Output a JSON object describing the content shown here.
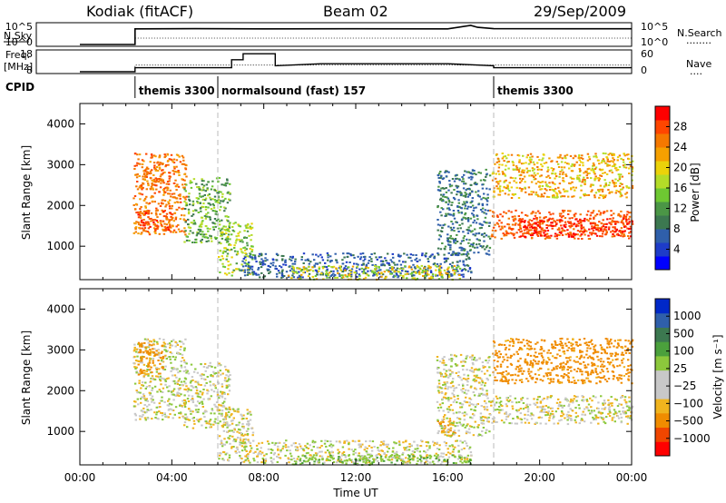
{
  "header": {
    "radar": "Kodiak (fitACF)",
    "beam": "Beam 02",
    "date": "29/Sep/2009"
  },
  "status_panels": {
    "nsky_label": "N.Sky",
    "nsearch_label": "N.Search",
    "nsearch_legend": "........",
    "freq_label_1": "Freq.",
    "freq_label_2": "[MHz]",
    "nave_label": "Nave",
    "nave_legend": "....",
    "cpid_label": "CPID",
    "nsky_ticks": [
      "10^5",
      "10^0"
    ],
    "nsearch_ticks": [
      "10^5",
      "10^0"
    ],
    "freq_ticks": [
      "18",
      "8"
    ],
    "nave_ticks": [
      "60",
      "0"
    ],
    "cpid_segments": [
      {
        "start_hour": 2.4,
        "label": "themis 3300"
      },
      {
        "start_hour": 6.0,
        "label": "normalsound (fast) 157"
      },
      {
        "start_hour": 18.0,
        "label": "themis 3300"
      }
    ]
  },
  "axes": {
    "x_label": "Time UT",
    "x_ticks": [
      "00:00",
      "04:00",
      "08:00",
      "12:00",
      "16:00",
      "20:00",
      "00:00"
    ],
    "y_label": "Slant Range [km]",
    "y_ticks": [
      "1000",
      "2000",
      "3000",
      "4000"
    ]
  },
  "colorbars": {
    "power": {
      "label": "Power [dB]",
      "ticks": [
        "4",
        "8",
        "12",
        "16",
        "20",
        "24",
        "28"
      ],
      "colors": [
        "#0000ff",
        "#1e3cc8",
        "#2f5faa",
        "#3c7850",
        "#4b9646",
        "#6ec832",
        "#b4dc28",
        "#ebd20a",
        "#f5a000",
        "#f57800",
        "#ff4600",
        "#ff0000"
      ]
    },
    "velocity": {
      "label": "Velocity [m s⁻¹]",
      "ticks": [
        "1000",
        "500",
        "100",
        "25",
        "−25",
        "−100",
        "−500",
        "−1000"
      ],
      "colors": [
        "#0028c8",
        "#2f5faa",
        "#3c7850",
        "#4ba03c",
        "#8cc83c",
        "#c8c8c8",
        "#c8c8c8",
        "#f0b41e",
        "#f08c00",
        "#f04600",
        "#ff0000"
      ]
    }
  },
  "chart_data": [
    {
      "type": "line",
      "title": "Kodiak (fitACF)",
      "panel": "status",
      "series": [
        {
          "name": "N.Sky",
          "x": [
            0,
            2.4,
            2.4,
            5,
            8,
            12,
            16,
            17,
            17.3,
            18,
            22,
            24
          ],
          "y": [
            1,
            1,
            8000,
            9000,
            8000,
            8500,
            8000,
            60000,
            20000,
            9000,
            8500,
            8500
          ]
        },
        {
          "name": "Freq.",
          "x": [
            0,
            2.4,
            2.4,
            6.6,
            6.6,
            7.1,
            7.1,
            8.5,
            8.5,
            10.5,
            13,
            16,
            18,
            18,
            24
          ],
          "y": [
            8,
            8,
            10,
            10,
            14,
            14,
            17,
            17,
            11,
            12,
            12,
            12,
            11,
            10,
            10
          ]
        },
        {
          "name": "Nave",
          "x": [
            0,
            2.4,
            2.4,
            24
          ],
          "y": [
            0,
            0,
            20,
            20
          ]
        }
      ],
      "x_range": [
        0,
        24
      ]
    },
    {
      "type": "heatmap",
      "title": "",
      "xlabel": "Time UT",
      "ylabel": "Slant Range [km]",
      "colorbar": "Power [dB]",
      "x_range": [
        0,
        24
      ],
      "y_range": [
        180,
        4500
      ],
      "regions": [
        {
          "t0": 2.3,
          "t1": 4.6,
          "r0": 1300,
          "r1": 3300,
          "v": 22
        },
        {
          "t0": 2.4,
          "t1": 4.0,
          "r0": 1400,
          "r1": 1900,
          "v": 26
        },
        {
          "t0": 2.6,
          "t1": 3.6,
          "r0": 2400,
          "r1": 2950,
          "v": 22
        },
        {
          "t0": 4.5,
          "t1": 6.5,
          "r0": 1100,
          "r1": 2700,
          "v": 12
        },
        {
          "t0": 6.0,
          "t1": 7.5,
          "r0": 300,
          "r1": 1600,
          "v": 14
        },
        {
          "t0": 7.0,
          "t1": 17.0,
          "r0": 250,
          "r1": 850,
          "v": 6
        },
        {
          "t0": 9.0,
          "t1": 16.5,
          "r0": 200,
          "r1": 550,
          "v": 16
        },
        {
          "t0": 15.5,
          "t1": 17.8,
          "r0": 800,
          "r1": 2900,
          "v": 8
        },
        {
          "t0": 17.8,
          "t1": 24.0,
          "r0": 1200,
          "r1": 1900,
          "v": 24
        },
        {
          "t0": 19.0,
          "t1": 24.0,
          "r0": 1250,
          "r1": 1700,
          "v": 28
        },
        {
          "t0": 17.9,
          "t1": 24.0,
          "r0": 2200,
          "r1": 3300,
          "v": 18
        }
      ]
    },
    {
      "type": "heatmap",
      "title": "",
      "xlabel": "Time UT",
      "ylabel": "Slant Range [km]",
      "colorbar": "Velocity [m s⁻¹]",
      "x_range": [
        0,
        24
      ],
      "y_range": [
        180,
        4500
      ],
      "regions": [
        {
          "t0": 2.3,
          "t1": 4.6,
          "r0": 1300,
          "r1": 3300,
          "v": 0
        },
        {
          "t0": 2.5,
          "t1": 3.6,
          "r0": 2400,
          "r1": 3200,
          "v": -150
        },
        {
          "t0": 4.5,
          "t1": 6.5,
          "r0": 1100,
          "r1": 2700,
          "v": 0
        },
        {
          "t0": 6.0,
          "t1": 7.5,
          "r0": 300,
          "r1": 1600,
          "v": 0
        },
        {
          "t0": 7.0,
          "t1": 17.0,
          "r0": 250,
          "r1": 800,
          "v": 0
        },
        {
          "t0": 9.0,
          "t1": 17.0,
          "r0": 200,
          "r1": 450,
          "v": 80
        },
        {
          "t0": 15.5,
          "t1": 16.3,
          "r0": 900,
          "r1": 1300,
          "v": -150
        },
        {
          "t0": 15.5,
          "t1": 17.8,
          "r0": 900,
          "r1": 2900,
          "v": 0
        },
        {
          "t0": 17.8,
          "t1": 24.0,
          "r0": 1200,
          "r1": 1900,
          "v": 0
        },
        {
          "t0": 17.9,
          "t1": 24.0,
          "r0": 2200,
          "r1": 3300,
          "v": -150
        }
      ]
    }
  ]
}
